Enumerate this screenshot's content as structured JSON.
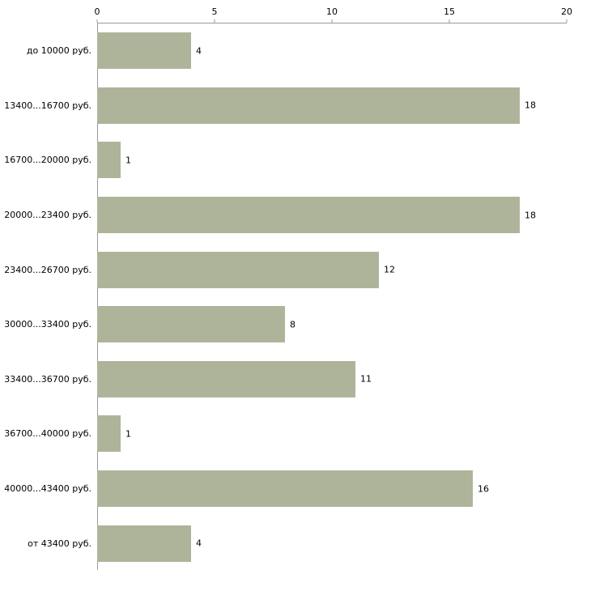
{
  "chart_data": {
    "type": "bar",
    "orientation": "horizontal",
    "title": "",
    "xlabel": "",
    "ylabel": "",
    "categories": [
      "до 10000 руб.",
      "13400...16700 руб.",
      "16700...20000 руб.",
      "20000...23400 руб.",
      "23400...26700 руб.",
      "30000...33400 руб.",
      "33400...36700 руб.",
      "36700...40000 руб.",
      "40000...43400 руб.",
      "от 43400 руб."
    ],
    "values": [
      4,
      18,
      1,
      18,
      12,
      8,
      11,
      1,
      16,
      4
    ],
    "xlim": [
      0,
      20
    ],
    "x_ticks": [
      0,
      5,
      10,
      15,
      20
    ],
    "grid": false,
    "legend": null,
    "x_axis_position": "top",
    "bar_color": "#aeb49a",
    "axis_color": "#9a9a9a",
    "text_color": "#000000",
    "background_color": "#ffffff"
  }
}
